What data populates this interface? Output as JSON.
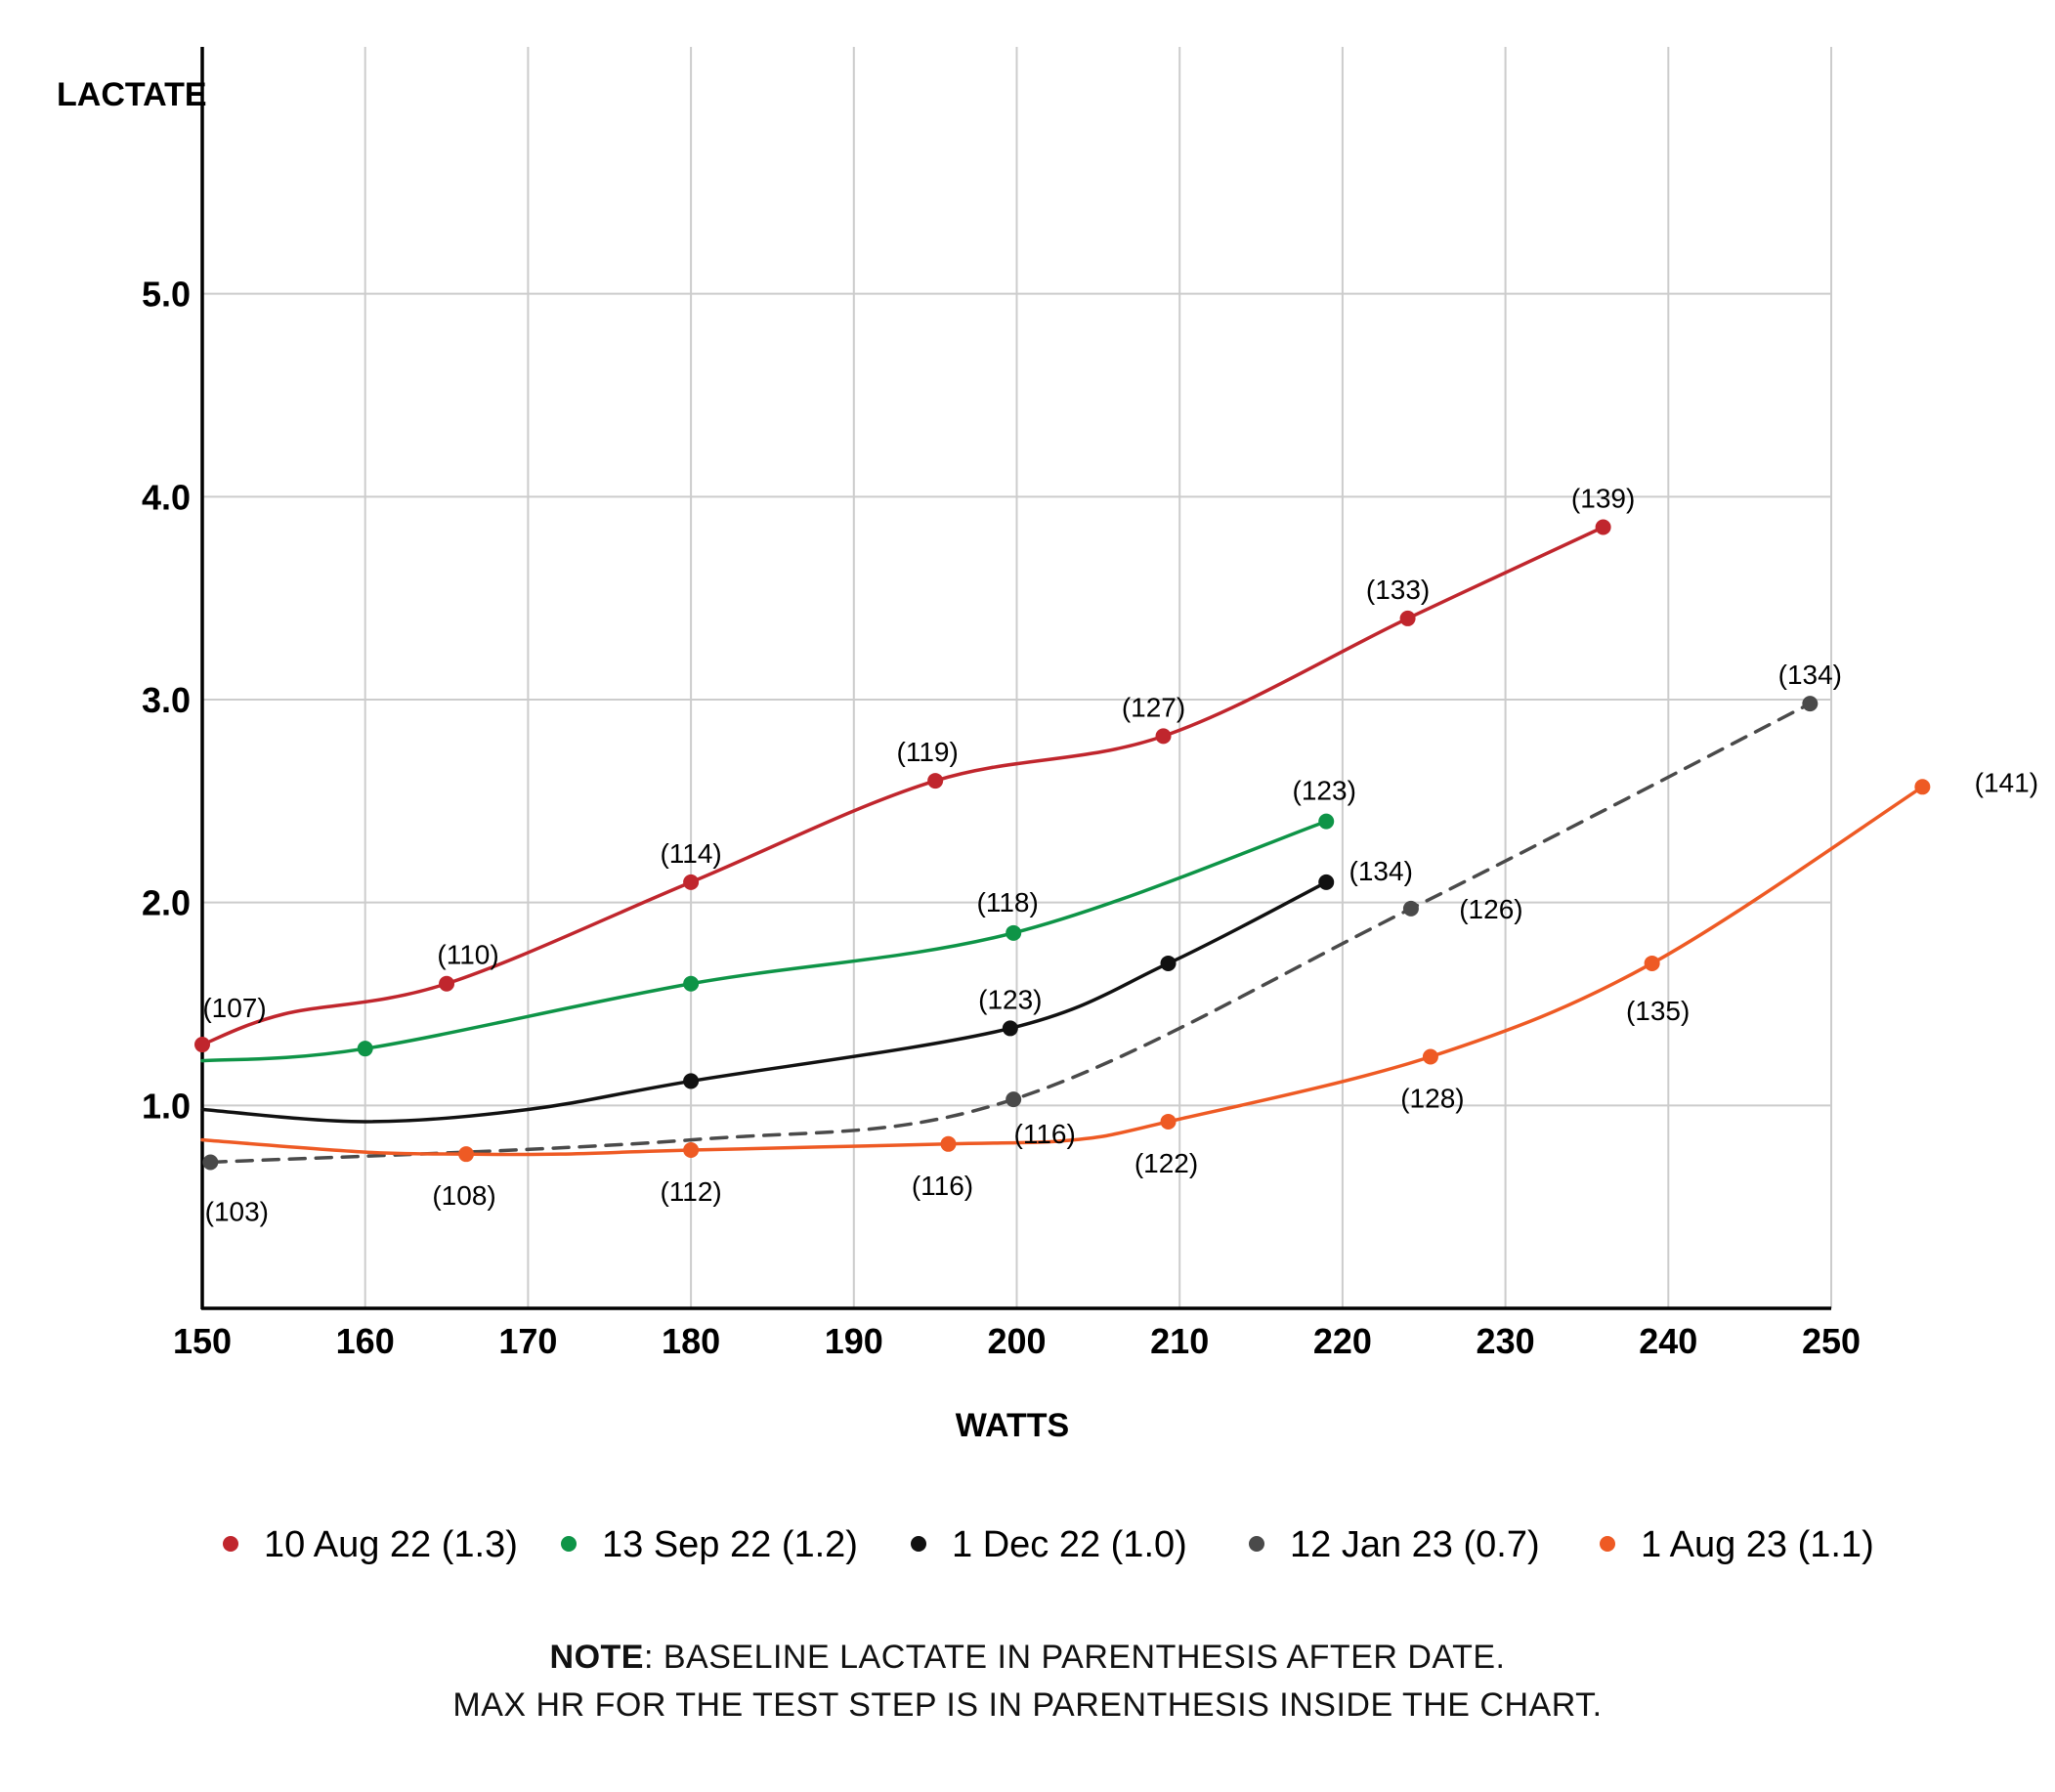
{
  "chart_data": {
    "type": "line",
    "ylabel": "LACTATE",
    "xlabel": "WATTS",
    "xlim": [
      150,
      250
    ],
    "ylim": [
      0,
      6.0
    ],
    "x_ticks": [
      "150",
      "160",
      "170",
      "180",
      "190",
      "200",
      "210",
      "220",
      "230",
      "240",
      "250"
    ],
    "y_ticks": [
      {
        "value": 1.0,
        "label": "1.0"
      },
      {
        "value": 2.0,
        "label": "2.0"
      },
      {
        "value": 3.0,
        "label": "3.0"
      },
      {
        "value": 4.0,
        "label": "4.0"
      },
      {
        "value": 5.0,
        "label": "5.0"
      }
    ],
    "grid": true,
    "legend_position": "bottom",
    "series": [
      {
        "name": "10 Aug 22 (1.3)",
        "color": "#c0262d",
        "dashed": false,
        "points": [
          {
            "x": 150,
            "y": 1.3,
            "marker": true,
            "label": "(107)"
          },
          {
            "x": 155,
            "y": 1.45,
            "marker": false
          },
          {
            "x": 165,
            "y": 1.6,
            "marker": true,
            "label": "(110)"
          },
          {
            "x": 180,
            "y": 2.1,
            "marker": true,
            "label": "(114)"
          },
          {
            "x": 195,
            "y": 2.6,
            "marker": true,
            "label": "(119)"
          },
          {
            "x": 209,
            "y": 2.82,
            "marker": true,
            "label": "(127)"
          },
          {
            "x": 224,
            "y": 3.4,
            "marker": true,
            "label": "(133)"
          },
          {
            "x": 236,
            "y": 3.85,
            "marker": true,
            "label": "(139)"
          }
        ]
      },
      {
        "name": "13 Sep 22 (1.2)",
        "color": "#0e9447",
        "dashed": false,
        "points": [
          {
            "x": 150,
            "y": 1.22,
            "marker": false
          },
          {
            "x": 160,
            "y": 1.28,
            "marker": true
          },
          {
            "x": 180,
            "y": 1.6,
            "marker": true
          },
          {
            "x": 199.8,
            "y": 1.85,
            "marker": true,
            "label": "(118)"
          },
          {
            "x": 219,
            "y": 2.4,
            "marker": true,
            "label": "(123)"
          }
        ]
      },
      {
        "name": "1 Dec 22 (1.0)",
        "color": "#111111",
        "dashed": false,
        "points": [
          {
            "x": 150,
            "y": 0.98,
            "marker": false
          },
          {
            "x": 160,
            "y": 0.92,
            "marker": false
          },
          {
            "x": 170,
            "y": 0.98,
            "marker": false
          },
          {
            "x": 180,
            "y": 1.12,
            "marker": true
          },
          {
            "x": 199.6,
            "y": 1.38,
            "marker": true,
            "label": "(123)"
          },
          {
            "x": 209.3,
            "y": 1.7,
            "marker": true
          },
          {
            "x": 219,
            "y": 2.1,
            "marker": true,
            "label": "(134)"
          }
        ]
      },
      {
        "name": "12 Jan 23 (0.7)",
        "color": "#4a4a4a",
        "dashed": true,
        "points": [
          {
            "x": 150.5,
            "y": 0.72,
            "marker": true,
            "label": "(103)"
          },
          {
            "x": 180,
            "y": 0.83,
            "marker": false
          },
          {
            "x": 199.8,
            "y": 1.03,
            "marker": true,
            "label": "(116)"
          },
          {
            "x": 224.2,
            "y": 1.97,
            "marker": true,
            "label": "(126)"
          },
          {
            "x": 248.7,
            "y": 2.98,
            "marker": true,
            "label": "(134)"
          }
        ]
      },
      {
        "name": "1 Aug 23 (1.1)",
        "color": "#ee5a24",
        "dashed": false,
        "points": [
          {
            "x": 150,
            "y": 0.83,
            "marker": false
          },
          {
            "x": 160,
            "y": 0.77,
            "marker": false
          },
          {
            "x": 166.2,
            "y": 0.76,
            "marker": true,
            "label": "(108)"
          },
          {
            "x": 172,
            "y": 0.76,
            "marker": false
          },
          {
            "x": 180,
            "y": 0.78,
            "marker": true,
            "label": "(112)"
          },
          {
            "x": 195.8,
            "y": 0.81,
            "marker": true,
            "label": "(116)"
          },
          {
            "x": 203.5,
            "y": 0.83,
            "marker": false
          },
          {
            "x": 209.3,
            "y": 0.92,
            "marker": true,
            "label": "(122)"
          },
          {
            "x": 225.4,
            "y": 1.24,
            "marker": true,
            "label": "(128)"
          },
          {
            "x": 239,
            "y": 1.7,
            "marker": true,
            "label": "(135)"
          },
          {
            "x": 255.6,
            "y": 2.57,
            "marker": true,
            "label": "(141)"
          }
        ]
      }
    ],
    "note": {
      "line1_bold": "NOTE",
      "line1_rest": ": BASELINE LACTATE IN PARENTHESIS AFTER DATE.",
      "line2": "MAX HR FOR THE TEST STEP IS IN PARENTHESIS INSIDE THE CHART."
    }
  }
}
